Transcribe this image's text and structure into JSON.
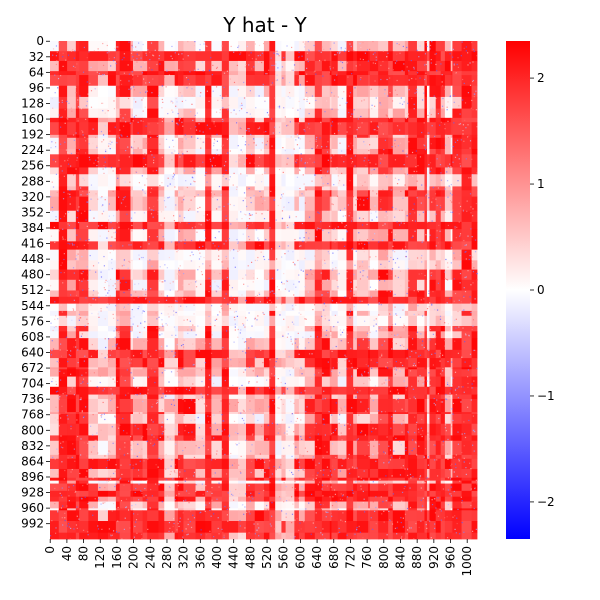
{
  "chart_data": {
    "type": "heatmap",
    "title": "Y hat - Y",
    "xlabel": "",
    "ylabel": "",
    "n_rows": 1024,
    "n_cols": 1024,
    "y_ticks": [
      "0",
      "32",
      "64",
      "96",
      "128",
      "160",
      "192",
      "224",
      "256",
      "288",
      "320",
      "352",
      "384",
      "416",
      "448",
      "480",
      "512",
      "544",
      "576",
      "608",
      "640",
      "672",
      "704",
      "736",
      "768",
      "800",
      "832",
      "864",
      "896",
      "928",
      "960",
      "992"
    ],
    "x_ticks": [
      "0",
      "40",
      "80",
      "120",
      "160",
      "200",
      "240",
      "280",
      "320",
      "360",
      "400",
      "440",
      "480",
      "520",
      "560",
      "600",
      "640",
      "680",
      "720",
      "760",
      "800",
      "840",
      "880",
      "920",
      "960",
      "1000"
    ],
    "colormap": "bwr",
    "colors": {
      "low": "#0000ff",
      "mid": "#ffffff",
      "high": "#ff0000"
    },
    "value_range": [
      -2.35,
      2.35
    ],
    "colorbar_ticks": [
      "2",
      "1",
      "0",
      "−1",
      "−2"
    ],
    "grid": false
  }
}
